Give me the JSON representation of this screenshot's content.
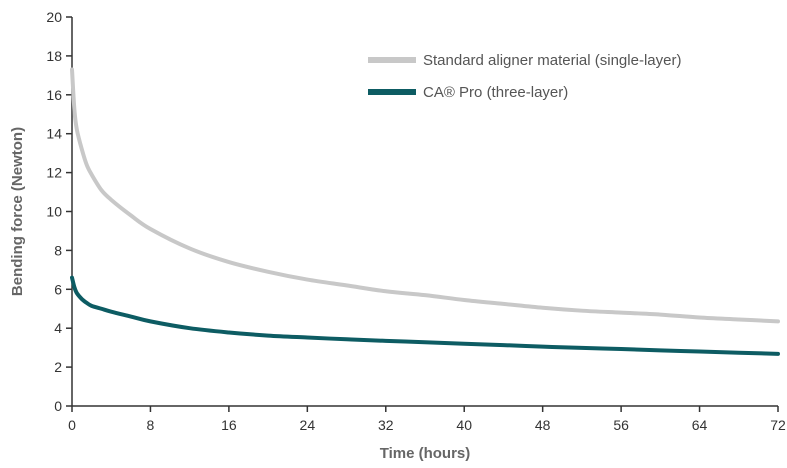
{
  "chart_data": {
    "type": "line",
    "title": "",
    "xlabel": "Time (hours)",
    "ylabel": "Bending force (Newton)",
    "xlim": [
      0,
      72
    ],
    "ylim": [
      0,
      20
    ],
    "x_ticks": [
      0,
      8,
      16,
      24,
      32,
      40,
      48,
      56,
      64,
      72
    ],
    "y_ticks": [
      0,
      2,
      4,
      6,
      8,
      10,
      12,
      14,
      16,
      18,
      20
    ],
    "grid": false,
    "legend_position": "top-right",
    "series": [
      {
        "name": "Standard aligner material (single-layer)",
        "color": "#c8c8c8",
        "x": [
          0,
          0.25,
          0.5,
          1,
          1.5,
          2,
          3,
          4,
          6,
          8,
          12,
          16,
          20,
          24,
          28,
          32,
          36,
          40,
          44,
          48,
          52,
          56,
          60,
          64,
          68,
          72
        ],
        "y": [
          17.3,
          15.2,
          14.2,
          13.2,
          12.4,
          11.9,
          11.1,
          10.6,
          9.8,
          9.1,
          8.1,
          7.4,
          6.9,
          6.5,
          6.2,
          5.9,
          5.7,
          5.45,
          5.25,
          5.05,
          4.9,
          4.8,
          4.7,
          4.55,
          4.45,
          4.35
        ]
      },
      {
        "name": "CA® Pro (three-layer)",
        "color": "#0d5c63",
        "x": [
          0,
          0.25,
          0.5,
          1,
          1.5,
          2,
          3,
          4,
          6,
          8,
          12,
          16,
          20,
          24,
          28,
          32,
          36,
          40,
          44,
          48,
          52,
          56,
          60,
          64,
          68,
          72
        ],
        "y": [
          6.6,
          6.1,
          5.8,
          5.5,
          5.3,
          5.15,
          5.0,
          4.85,
          4.6,
          4.35,
          4.0,
          3.78,
          3.62,
          3.52,
          3.43,
          3.35,
          3.28,
          3.2,
          3.13,
          3.05,
          2.99,
          2.93,
          2.86,
          2.8,
          2.74,
          2.68
        ]
      }
    ]
  }
}
